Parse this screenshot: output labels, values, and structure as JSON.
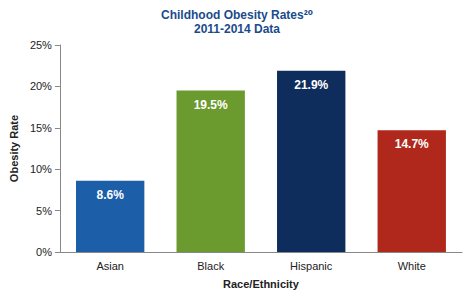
{
  "chart_data": {
    "type": "bar",
    "title": "Childhood Obesity Rates²⁰",
    "subtitle": "2011-2014 Data",
    "x_label": "Race/Ethnicity",
    "y_label": "Obesity Rate",
    "categories": [
      "Asian",
      "Black",
      "Hispanic",
      "White"
    ],
    "values": [
      8.6,
      19.5,
      21.9,
      14.7
    ],
    "value_labels": [
      "8.6%",
      "19.5%",
      "21.9%",
      "14.7%"
    ],
    "colors": [
      "#1d5ea8",
      "#6b9a2e",
      "#0e2d5c",
      "#b0281c"
    ],
    "ylim": [
      0,
      25
    ],
    "yticks": [
      {
        "value": 0,
        "label": "0%"
      },
      {
        "value": 5,
        "label": "5%"
      },
      {
        "value": 10,
        "label": "10%"
      },
      {
        "value": 15,
        "label": "15%"
      },
      {
        "value": 20,
        "label": "20%"
      },
      {
        "value": 25,
        "label": "25%"
      }
    ],
    "grid": false,
    "data_labels": true
  }
}
